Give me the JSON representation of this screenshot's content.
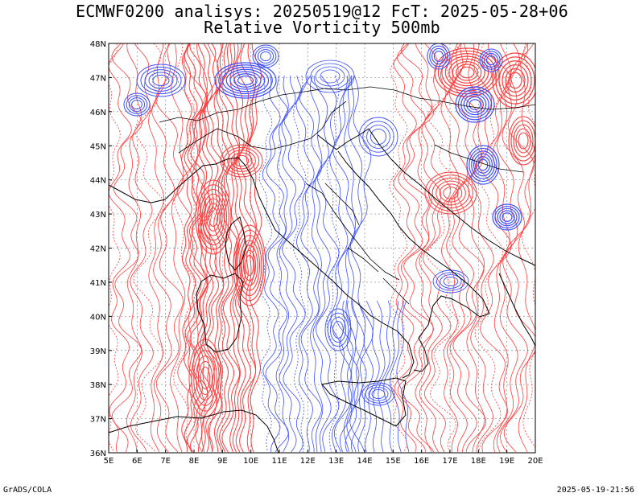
{
  "header": {
    "line1": "ECMWF0200 analisys: 20250519@12 FcT: 2025-05-28+06",
    "line2": "Relative Vorticity 500mb"
  },
  "footer": {
    "left": "GrADS/COLA",
    "right": "2025-05-19-21:56"
  },
  "map": {
    "lat_labels": [
      "48N",
      "47N",
      "46N",
      "45N",
      "44N",
      "43N",
      "42N",
      "41N",
      "40N",
      "39N",
      "38N",
      "37N",
      "36N"
    ],
    "lon_labels": [
      "5E",
      "6E",
      "7E",
      "8E",
      "9E",
      "10E",
      "11E",
      "12E",
      "13E",
      "14E",
      "15E",
      "16E",
      "17E",
      "18E",
      "19E",
      "20E"
    ],
    "lat_range": [
      36,
      48
    ],
    "lon_range": [
      5,
      20
    ],
    "grid": "dotted",
    "colors": {
      "positive_contour": "#ff3c3c",
      "negative_contour": "#3c50ff",
      "coastline": "#000000",
      "grid": "#888888"
    }
  }
}
